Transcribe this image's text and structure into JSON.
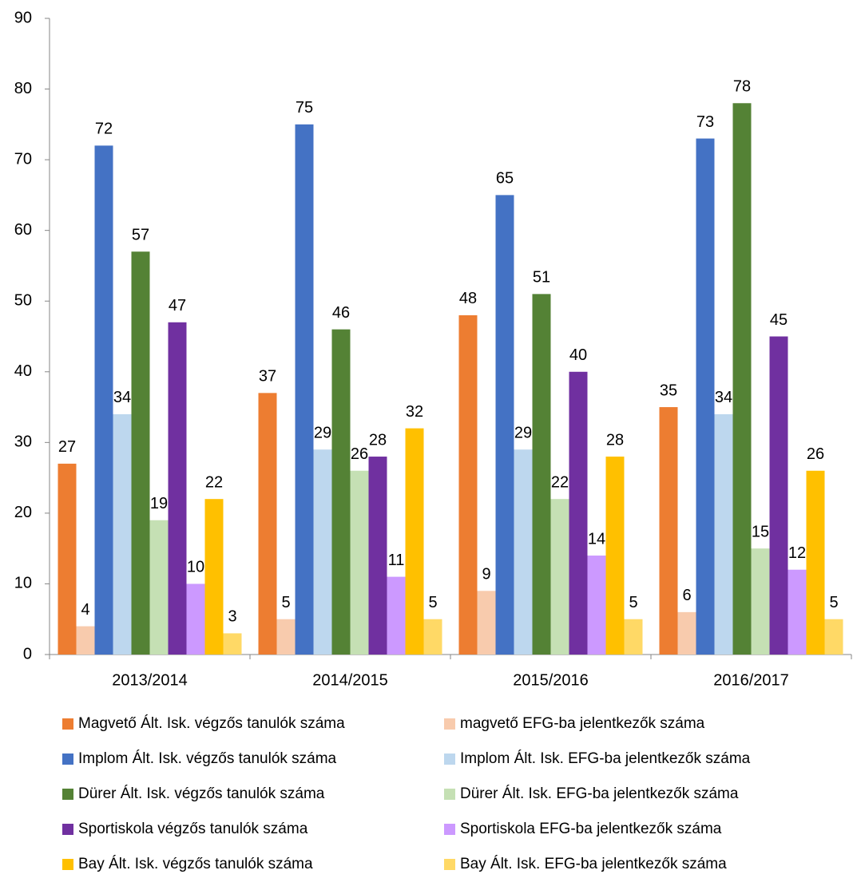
{
  "chart_data": {
    "type": "bar",
    "categories": [
      "2013/2014",
      "2014/2015",
      "2015/2016",
      "2016/2017"
    ],
    "series": [
      {
        "name": "Magvető Ált. Isk. végzős tanulók száma",
        "color": "#ED7D31",
        "values": [
          27,
          37,
          48,
          35
        ]
      },
      {
        "name": "magvető EFG-ba jelentkezők száma",
        "color": "#F8CBAD",
        "values": [
          4,
          5,
          9,
          6
        ]
      },
      {
        "name": "Implom Ált. Isk. végzős tanulók száma",
        "color": "#4472C4",
        "values": [
          72,
          75,
          65,
          73
        ]
      },
      {
        "name": "Implom Ált. Isk. EFG-ba jelentkezők száma",
        "color": "#BDD7EE",
        "values": [
          34,
          29,
          29,
          34
        ]
      },
      {
        "name": "Dürer Ált. Isk. végzős tanulók száma",
        "color": "#548235",
        "values": [
          57,
          46,
          51,
          78
        ]
      },
      {
        "name": "Dürer Ált. Isk. EFG-ba jelentkezők száma",
        "color": "#C5E0B4",
        "values": [
          19,
          26,
          22,
          15
        ]
      },
      {
        "name": "Sportiskola végzős tanulók száma",
        "color": "#7030A0",
        "values": [
          47,
          28,
          40,
          45
        ]
      },
      {
        "name": "Sportiskola EFG-ba jelentkezők száma",
        "color": "#CC99FF",
        "values": [
          10,
          11,
          14,
          12
        ]
      },
      {
        "name": "Bay Ált. Isk. végzős tanulók száma",
        "color": "#FFC000",
        "values": [
          22,
          32,
          28,
          26
        ]
      },
      {
        "name": "Bay Ált. Isk. EFG-ba jelentkezők száma",
        "color": "#FFD966",
        "values": [
          3,
          5,
          5,
          5
        ]
      }
    ],
    "ylim": [
      0,
      90
    ],
    "yticks": [
      0,
      10,
      20,
      30,
      40,
      50,
      60,
      70,
      80,
      90
    ],
    "grid": false,
    "legend": "bottom"
  }
}
